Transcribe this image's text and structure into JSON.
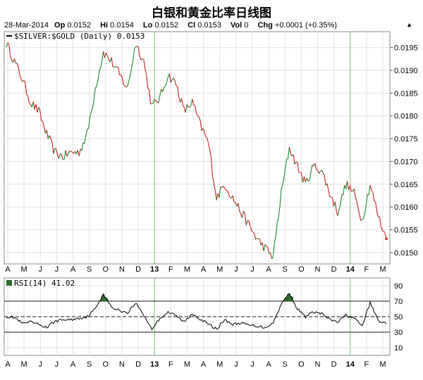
{
  "title": "白银和黄金比率日线图",
  "info": {
    "date": "28-Mar-2014",
    "op_label": "Op",
    "op": "0.0152",
    "hi_label": "Hi",
    "hi": "0.0154",
    "lo_label": "Lo",
    "lo": "0.0152",
    "cl_label": "Cl",
    "cl": "0.0153",
    "vol_label": "Vol",
    "vol": "0",
    "chg_label": "Chg",
    "chg": "+0.0001 (+0.35%)"
  },
  "chart_data": [
    {
      "type": "line",
      "legend": "$SILVER:$GOLD (Daily) 0.0153",
      "ylim": [
        0.01475,
        0.01985
      ],
      "y_ticks": [
        "0.0195",
        "0.0190",
        "0.0185",
        "0.0180",
        "0.0175",
        "0.0170",
        "0.0165",
        "0.0160",
        "0.0155",
        "0.0150"
      ],
      "x_ticks": [
        "A",
        "M",
        "J",
        "J",
        "A",
        "S",
        "O",
        "N",
        "D",
        "13",
        "F",
        "M",
        "A",
        "M",
        "J",
        "J",
        "A",
        "S",
        "O",
        "N",
        "D",
        "14",
        "F",
        "M"
      ],
      "x": [
        "Apr-2012",
        "Apr-2012",
        "May-2012",
        "May-2012",
        "Jun-2012",
        "Jun-2012",
        "Jul-2012",
        "Jul-2012",
        "Aug-2012",
        "Aug-2012",
        "Sep-2012",
        "Sep-2012",
        "Oct-2012",
        "Oct-2012",
        "Nov-2012",
        "Nov-2012",
        "Dec-2012",
        "Dec-2012",
        "Jan-2013",
        "Jan-2013",
        "Feb-2013",
        "Feb-2013",
        "Mar-2013",
        "Mar-2013",
        "Apr-2013",
        "Apr-2013",
        "May-2013",
        "May-2013",
        "Jun-2013",
        "Jun-2013",
        "Jul-2013",
        "Jul-2013",
        "Aug-2013",
        "Aug-2013",
        "Sep-2013",
        "Sep-2013",
        "Oct-2013",
        "Oct-2013",
        "Nov-2013",
        "Nov-2013",
        "Dec-2013",
        "Dec-2013",
        "Jan-2014",
        "Jan-2014",
        "Feb-2014",
        "Feb-2014",
        "Mar-2014",
        "Mar-2014"
      ],
      "values": [
        0.0196,
        0.0192,
        0.0188,
        0.0183,
        0.0181,
        0.0176,
        0.0172,
        0.0171,
        0.0172,
        0.0172,
        0.0176,
        0.0186,
        0.0194,
        0.0192,
        0.0189,
        0.0186,
        0.0196,
        0.0192,
        0.0182,
        0.0184,
        0.0189,
        0.0187,
        0.0181,
        0.0183,
        0.0178,
        0.0174,
        0.0162,
        0.0165,
        0.0162,
        0.0159,
        0.0156,
        0.0153,
        0.0151,
        0.0149,
        0.0163,
        0.0173,
        0.0169,
        0.0165,
        0.0169,
        0.0168,
        0.0163,
        0.0159,
        0.0165,
        0.0163,
        0.0157,
        0.0165,
        0.0158,
        0.0153
      ]
    },
    {
      "type": "line",
      "legend": "RSI(14) 41.02",
      "ylim": [
        0,
        100
      ],
      "y_ticks": [
        "90",
        "70",
        "50",
        "30",
        "10"
      ],
      "reference_lines": [
        70,
        50,
        30
      ],
      "x_ticks": [
        "A",
        "M",
        "J",
        "J",
        "A",
        "S",
        "O",
        "N",
        "D",
        "13",
        "F",
        "M",
        "A",
        "M",
        "J",
        "J",
        "A",
        "S",
        "O",
        "N",
        "D",
        "14",
        "F",
        "M"
      ],
      "values": [
        50,
        49,
        41,
        43,
        40,
        36,
        44,
        46,
        46,
        48,
        50,
        60,
        80,
        62,
        58,
        55,
        68,
        52,
        34,
        48,
        56,
        51,
        43,
        54,
        47,
        40,
        34,
        46,
        40,
        42,
        39,
        38,
        36,
        42,
        66,
        81,
        60,
        50,
        56,
        54,
        46,
        43,
        52,
        48,
        38,
        68,
        45,
        41
      ]
    }
  ]
}
